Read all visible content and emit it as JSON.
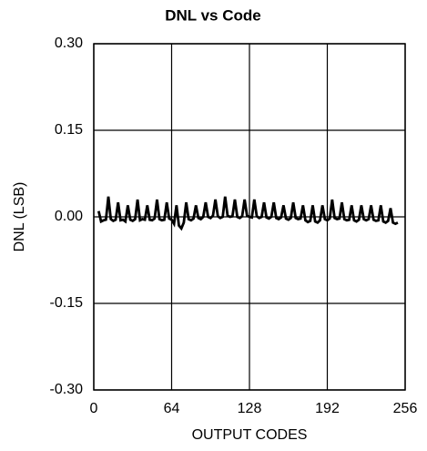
{
  "chart_data": {
    "type": "line",
    "title": "DNL vs Code",
    "xlabel": "OUTPUT CODES",
    "ylabel": "DNL (LSB)",
    "color": "#000000",
    "grid": true,
    "xlim": [
      0,
      256
    ],
    "xticks": [
      0,
      64,
      128,
      192,
      256
    ],
    "ylim": [
      -0.3,
      0.3
    ],
    "yticks": [
      {
        "value": -0.3,
        "label": "-0.30"
      },
      {
        "value": -0.15,
        "label": "-0.15"
      },
      {
        "value": 0,
        "label": "0.00"
      },
      {
        "value": 0.15,
        "label": "0.15"
      },
      {
        "value": 0.3,
        "label": "0.30"
      }
    ],
    "x": [
      4,
      6,
      8,
      10,
      12,
      14,
      16,
      18,
      20,
      22,
      24,
      26,
      28,
      30,
      32,
      34,
      36,
      38,
      40,
      42,
      44,
      46,
      48,
      50,
      52,
      54,
      56,
      58,
      60,
      62,
      64,
      66,
      68,
      70,
      72,
      74,
      76,
      78,
      80,
      82,
      84,
      86,
      88,
      90,
      92,
      94,
      96,
      98,
      100,
      102,
      104,
      106,
      108,
      110,
      112,
      114,
      116,
      118,
      120,
      122,
      124,
      126,
      128,
      130,
      132,
      134,
      136,
      138,
      140,
      142,
      144,
      146,
      148,
      150,
      152,
      154,
      156,
      158,
      160,
      162,
      164,
      166,
      168,
      170,
      172,
      174,
      176,
      178,
      180,
      182,
      184,
      186,
      188,
      190,
      192,
      194,
      196,
      198,
      200,
      202,
      204,
      206,
      208,
      210,
      212,
      214,
      216,
      218,
      220,
      222,
      224,
      226,
      228,
      230,
      232,
      234,
      236,
      238,
      240,
      242,
      244,
      246,
      248,
      250
    ],
    "values": [
      0.01,
      -0.008,
      -0.006,
      -0.005,
      0.035,
      -0.004,
      -0.007,
      -0.005,
      0.025,
      -0.006,
      -0.005,
      -0.008,
      0.02,
      -0.005,
      -0.007,
      -0.004,
      0.03,
      -0.006,
      -0.004,
      -0.005,
      0.02,
      -0.005,
      -0.006,
      -0.003,
      0.03,
      -0.004,
      -0.006,
      -0.005,
      0.025,
      -0.003,
      -0.005,
      -0.012,
      0.02,
      -0.015,
      -0.02,
      -0.01,
      0.025,
      -0.004,
      -0.006,
      -0.003,
      0.02,
      -0.002,
      -0.004,
      0.0,
      0.025,
      0.0,
      -0.002,
      0.002,
      0.03,
      0.001,
      -0.002,
      0.0,
      0.035,
      0.002,
      0.0,
      0.001,
      0.03,
      0.0,
      -0.002,
      0.001,
      0.03,
      0.002,
      0.0,
      -0.001,
      0.03,
      0.001,
      -0.002,
      0.0,
      0.025,
      -0.001,
      -0.003,
      0.0,
      0.025,
      -0.002,
      -0.004,
      -0.001,
      0.02,
      -0.003,
      -0.005,
      -0.002,
      0.025,
      -0.002,
      -0.004,
      -0.003,
      0.02,
      -0.006,
      -0.009,
      -0.007,
      0.02,
      -0.008,
      -0.01,
      -0.006,
      0.02,
      -0.004,
      -0.006,
      -0.003,
      0.03,
      -0.002,
      -0.004,
      -0.003,
      0.025,
      -0.004,
      -0.006,
      -0.005,
      0.02,
      -0.006,
      -0.008,
      -0.005,
      0.02,
      -0.004,
      -0.006,
      -0.004,
      0.02,
      -0.005,
      -0.007,
      -0.006,
      0.02,
      -0.008,
      -0.01,
      -0.007,
      0.015,
      -0.01,
      -0.012,
      -0.01
    ]
  }
}
